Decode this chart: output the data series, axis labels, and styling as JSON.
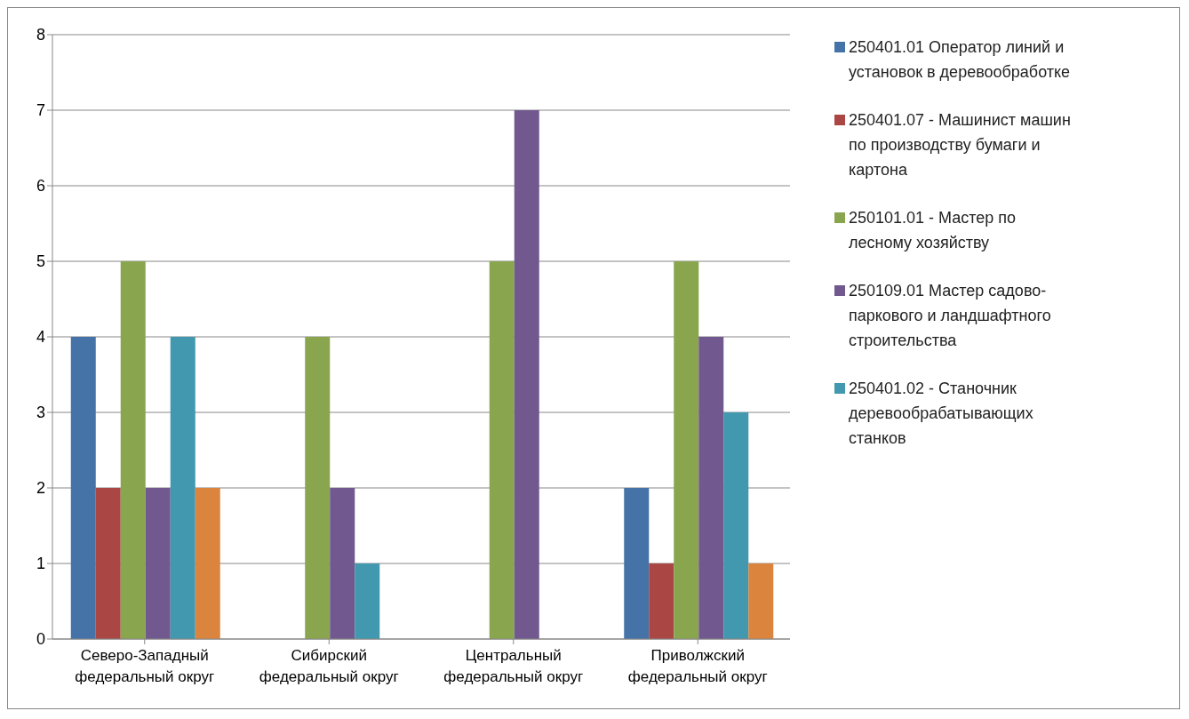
{
  "chart_data": {
    "type": "bar",
    "categories": [
      "Северо-Западный федеральный округ",
      "Сибирский федеральный округ",
      "Центральный федеральный округ",
      "Приволжский федеральный округ"
    ],
    "series": [
      {
        "name": "250401.01 Оператор линий и установок в деревообработке",
        "color": "#4572a7",
        "values": [
          4,
          null,
          null,
          2
        ]
      },
      {
        "name": "250401.07 - Машинист машин по производству бумаги и картона",
        "color": "#aa4643",
        "values": [
          2,
          null,
          null,
          1
        ]
      },
      {
        "name": "250101.01  - Мастер по лесному хозяйству",
        "color": "#89a54e",
        "values": [
          5,
          4,
          5,
          5
        ]
      },
      {
        "name": "250109.01 Мастер садово-паркового и ландшафтного строительства",
        "color": "#71588f",
        "values": [
          2,
          2,
          7,
          4
        ]
      },
      {
        "name": "250401.02 - Станочник деревообрабатывающих станков",
        "color": "#4198af",
        "values": [
          4,
          1,
          null,
          3
        ]
      },
      {
        "color": "#db843d",
        "values": [
          2,
          null,
          null,
          1
        ]
      }
    ],
    "ylim": [
      0,
      8
    ],
    "yticks": [
      0,
      1,
      2,
      3,
      4,
      5,
      6,
      7,
      8
    ],
    "grid": "y",
    "legend": "right"
  }
}
